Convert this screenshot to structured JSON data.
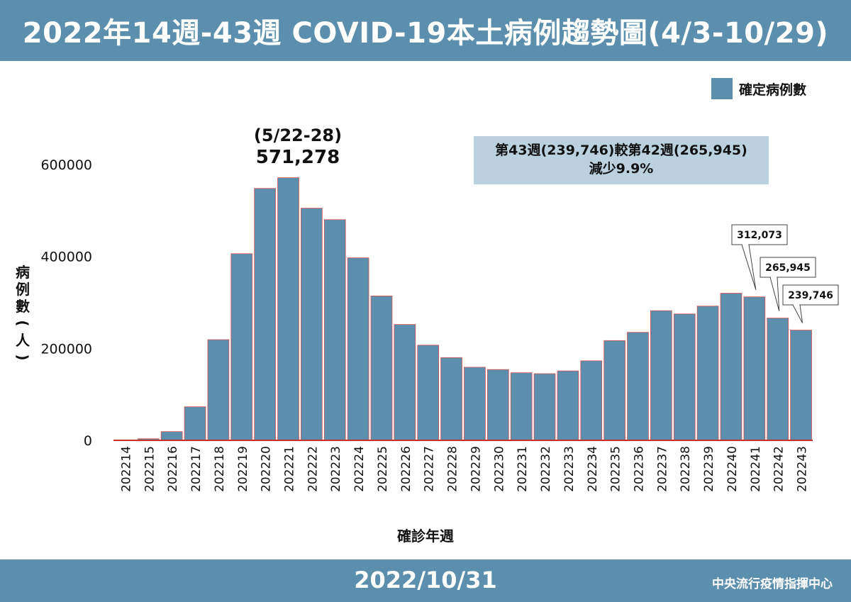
{
  "header": {
    "title": "2022年14週-43週 COVID-19本土病例趨勢圖(4/3-10/29)"
  },
  "footer": {
    "date": "2022/10/31",
    "org": "中央流行疫情指揮中心"
  },
  "legend": {
    "label": "確定病例數",
    "color": "#5b8fad"
  },
  "peak_note": {
    "week": "(5/22-28)",
    "value": "571,278"
  },
  "compare_box": {
    "line1": "第43週(239,746)較第42週(265,945)",
    "line2": "減少9.9%"
  },
  "callouts": [
    {
      "week": "202241",
      "text": "312,073"
    },
    {
      "week": "202242",
      "text": "265,945"
    },
    {
      "week": "202243",
      "text": "239,746"
    }
  ],
  "chart_data": {
    "type": "bar",
    "title": "2022年14週-43週 COVID-19本土病例趨勢圖(4/3-10/29)",
    "xlabel": "確診年週",
    "ylabel": "病例數(人)",
    "ylim": [
      0,
      700000
    ],
    "yticks": [
      0,
      200000,
      400000,
      600000
    ],
    "ytick_labels": [
      "0",
      "200000",
      "400000",
      "600000"
    ],
    "grid": false,
    "legend_position": "top-right",
    "bar_color": "#5b8fad",
    "bar_edge_color": "#d9534f",
    "categories": [
      "202214",
      "202215",
      "202216",
      "202217",
      "202218",
      "202219",
      "202220",
      "202221",
      "202222",
      "202223",
      "202224",
      "202225",
      "202226",
      "202227",
      "202228",
      "202229",
      "202230",
      "202231",
      "202232",
      "202233",
      "202234",
      "202235",
      "202236",
      "202237",
      "202238",
      "202239",
      "202240",
      "202241",
      "202242",
      "202243"
    ],
    "series": [
      {
        "name": "確定病例數",
        "values": [
          390,
          3500,
          19000,
          73000,
          219000,
          406000,
          548000,
          571278,
          505000,
          480000,
          397000,
          314000,
          252000,
          207000,
          180000,
          159000,
          154000,
          147000,
          145000,
          151000,
          173000,
          217000,
          235000,
          282000,
          275000,
          292000,
          320000,
          312073,
          265945,
          239746
        ]
      }
    ]
  }
}
